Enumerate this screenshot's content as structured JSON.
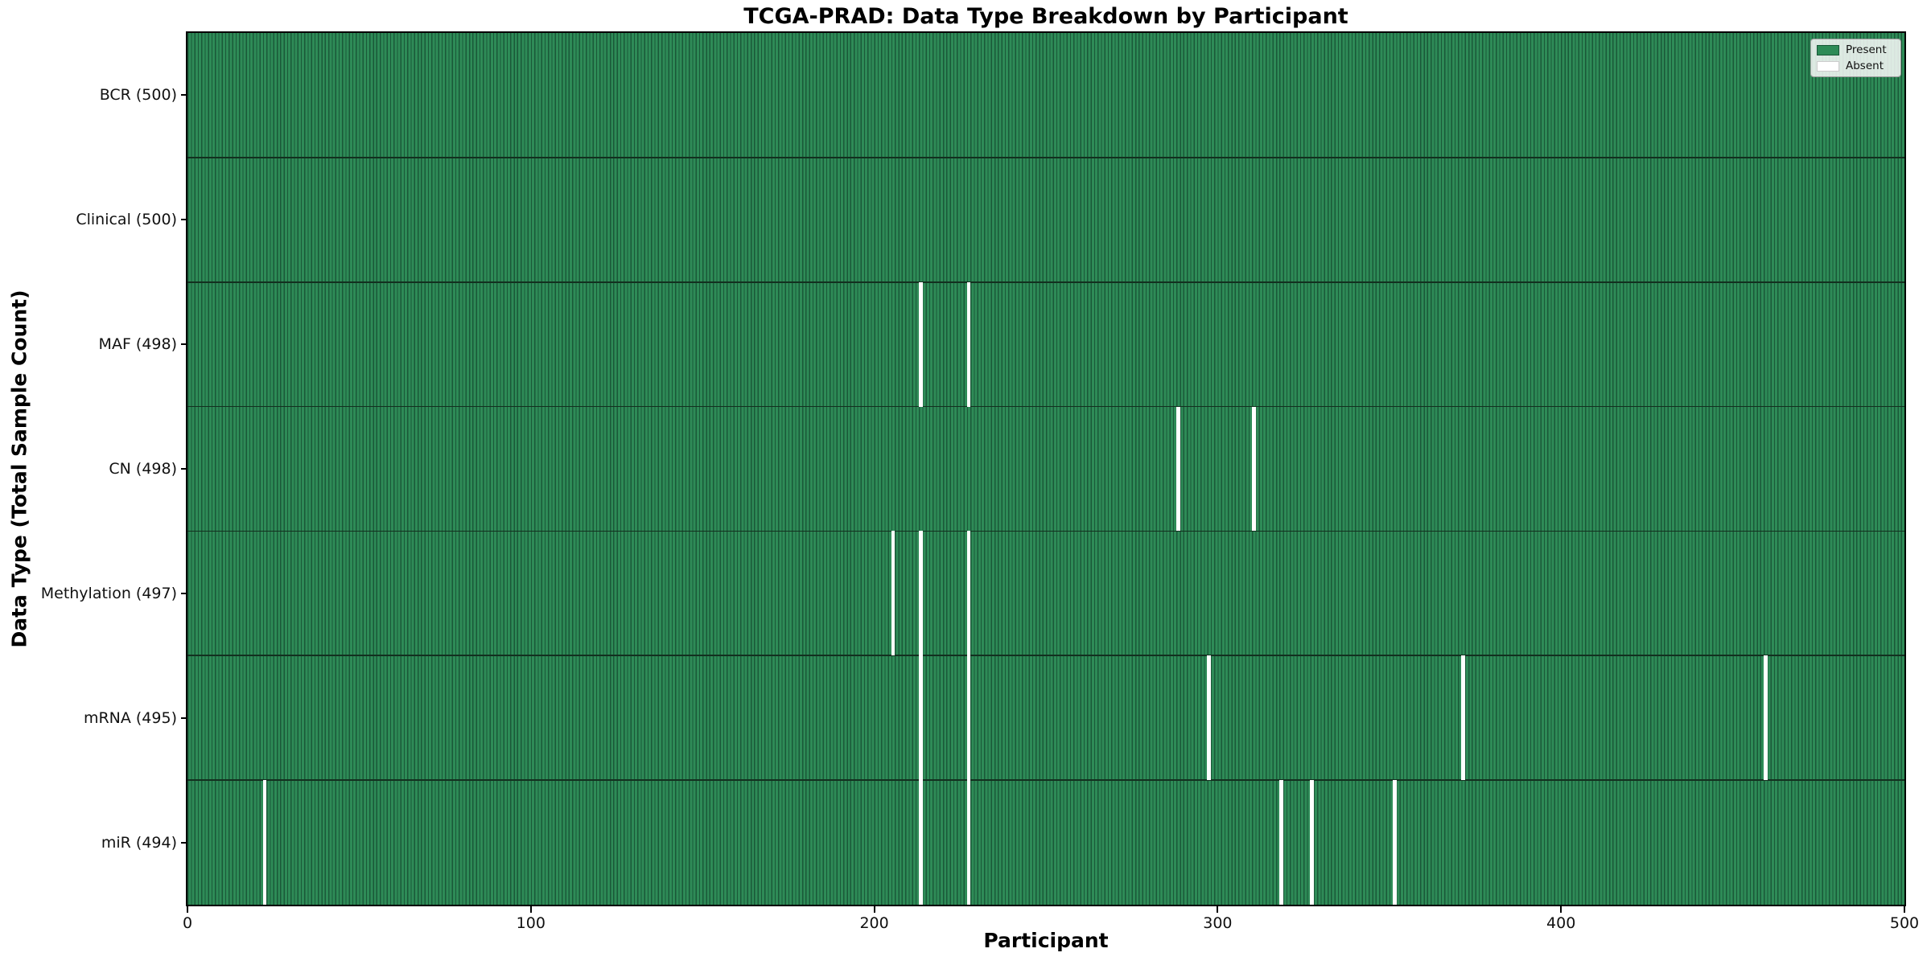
{
  "title": "TCGA-PRAD: Data Type Breakdown by Participant",
  "colors": {
    "present": "#2e8b57",
    "absent": "#ffffff",
    "bar_edge": "#1a5838",
    "row_boundary": "#13301f",
    "axis": "#000000"
  },
  "legend": {
    "entries": [
      {
        "label": "Present",
        "color": "#2e8b57",
        "border": "#1a5838"
      },
      {
        "label": "Absent",
        "color": "#ffffff",
        "border": "#cccccc"
      }
    ]
  },
  "chart_data": {
    "type": "heatmap",
    "title": "TCGA-PRAD: Data Type Breakdown by Participant",
    "xlabel": "Participant",
    "ylabel": "Data Type (Total Sample Count)",
    "x_range": [
      0,
      500
    ],
    "x_ticks": [
      0,
      100,
      200,
      300,
      400,
      500
    ],
    "n_participants": 500,
    "grid": false,
    "legend_position": "upper right",
    "categories": [
      "BCR",
      "Clinical",
      "MAF",
      "CN",
      "Methylation",
      "mRNA",
      "miR"
    ],
    "rows": [
      {
        "name": "BCR",
        "label": "BCR (500)",
        "total": 500,
        "absent_participants": []
      },
      {
        "name": "Clinical",
        "label": "Clinical (500)",
        "total": 500,
        "absent_participants": []
      },
      {
        "name": "MAF",
        "label": "MAF (498)",
        "total": 498,
        "absent_participants": [
          213,
          227
        ]
      },
      {
        "name": "CN",
        "label": "CN (498)",
        "total": 498,
        "absent_participants": [
          288,
          310
        ]
      },
      {
        "name": "Methylation",
        "label": "Methylation (497)",
        "total": 497,
        "absent_participants": [
          205,
          213,
          227
        ]
      },
      {
        "name": "mRNA",
        "label": "mRNA (495)",
        "total": 495,
        "absent_participants": [
          213,
          227,
          297,
          371,
          459
        ]
      },
      {
        "name": "miR",
        "label": "miR (494)",
        "total": 494,
        "absent_participants": [
          22,
          213,
          227,
          318,
          327,
          351
        ]
      }
    ]
  }
}
